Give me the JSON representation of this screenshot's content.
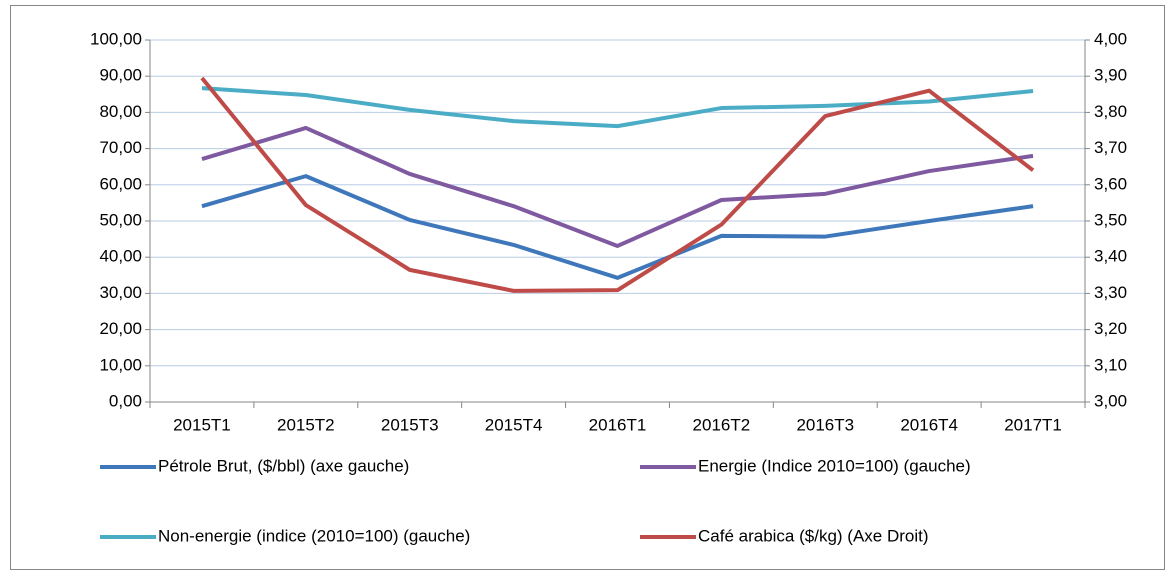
{
  "chart_data": {
    "type": "line",
    "categories": [
      "2015T1",
      "2015T2",
      "2015T3",
      "2015T4",
      "2016T1",
      "2016T2",
      "2016T3",
      "2016T4",
      "2017T1"
    ],
    "series": [
      {
        "name": "Pétrole Brut, ($/bbl) (axe gauche)",
        "color": "#3f77bb",
        "values": [
          54.1,
          62.4,
          50.3,
          43.4,
          34.3,
          45.9,
          45.7,
          50.0,
          54.1
        ]
      },
      {
        "name": "Energie (Indice 2010=100) (gauche)",
        "color": "#7f5aa0",
        "values": [
          67.1,
          75.7,
          63.0,
          54.1,
          43.1,
          55.8,
          57.5,
          63.8,
          68.0
        ]
      },
      {
        "name": "Non-energie (indice (2010=100) (gauche)",
        "color": "#4bacc6",
        "values": [
          86.7,
          84.8,
          80.7,
          77.6,
          76.2,
          81.2,
          81.8,
          83.0,
          85.9
        ]
      },
      {
        "name": "Café arabica ($/kg) (Axe Droit)",
        "color": "#be4b48",
        "axis": "y2",
        "values": [
          3.895,
          3.544,
          3.365,
          3.307,
          3.309,
          3.49,
          3.79,
          3.86,
          3.64
        ]
      }
    ],
    "ylim": [
      0,
      100
    ],
    "yticks": [
      {
        "value": 0,
        "label": "0,00"
      },
      {
        "value": 10,
        "label": "10,00"
      },
      {
        "value": 20,
        "label": "20,00"
      },
      {
        "value": 30,
        "label": "30,00"
      },
      {
        "value": 40,
        "label": "40,00"
      },
      {
        "value": 50,
        "label": "50,00"
      },
      {
        "value": 60,
        "label": "60,00"
      },
      {
        "value": 70,
        "label": "70,00"
      },
      {
        "value": 80,
        "label": "80,00"
      },
      {
        "value": 90,
        "label": "90,00"
      },
      {
        "value": 100,
        "label": "100,00"
      }
    ],
    "y2lim": [
      3,
      4
    ],
    "y2ticks": [
      {
        "value": 3,
        "label": "3,00"
      },
      {
        "value": 3.1,
        "label": "3,10"
      },
      {
        "value": 3.2,
        "label": "3,20"
      },
      {
        "value": 3.3,
        "label": "3,30"
      },
      {
        "value": 3.4,
        "label": "3,40"
      },
      {
        "value": 3.5,
        "label": "3,50"
      },
      {
        "value": 3.6,
        "label": "3,60"
      },
      {
        "value": 3.7,
        "label": "3,70"
      },
      {
        "value": 3.8,
        "label": "3,80"
      },
      {
        "value": 3.9,
        "label": "3,90"
      },
      {
        "value": 4,
        "label": "4,00"
      }
    ],
    "grid": true,
    "legend": "bottom"
  }
}
